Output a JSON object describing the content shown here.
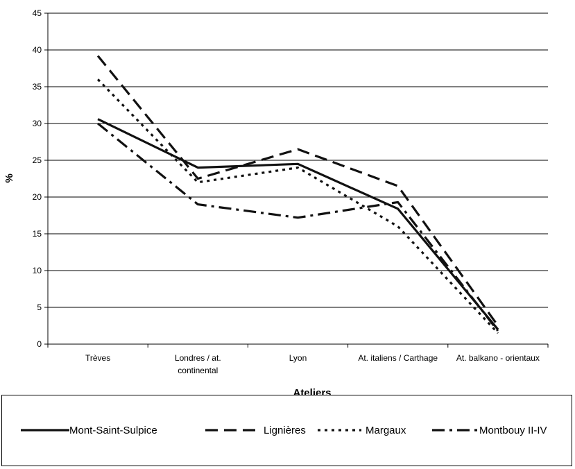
{
  "chart_data": {
    "type": "line",
    "xlabel": "Ateliers",
    "ylabel": "%",
    "ylim": [
      0,
      45
    ],
    "yticks": [
      0,
      5,
      10,
      15,
      20,
      25,
      30,
      35,
      40,
      45
    ],
    "grid": "horizontal",
    "legend_position": "bottom",
    "categories": [
      [
        "Trèves"
      ],
      [
        "Londres / at.",
        "continental"
      ],
      [
        "Lyon"
      ],
      [
        "At. italiens / Carthage"
      ],
      [
        "At. balkano - orientaux"
      ]
    ],
    "series": [
      {
        "name": "Mont-Saint-Sulpice",
        "style": "solid",
        "values": [
          30.6,
          24.0,
          24.5,
          18.4,
          2.0
        ]
      },
      {
        "name": "Lignières",
        "style": "dashed",
        "values": [
          39.2,
          22.5,
          26.5,
          21.5,
          2.5
        ]
      },
      {
        "name": "Margaux",
        "style": "dotted",
        "values": [
          36.0,
          22.0,
          24.0,
          16.0,
          1.5
        ]
      },
      {
        "name": "Montbouy II-IV",
        "style": "dashdot",
        "values": [
          30.0,
          19.0,
          17.2,
          19.3,
          1.8
        ]
      }
    ]
  }
}
